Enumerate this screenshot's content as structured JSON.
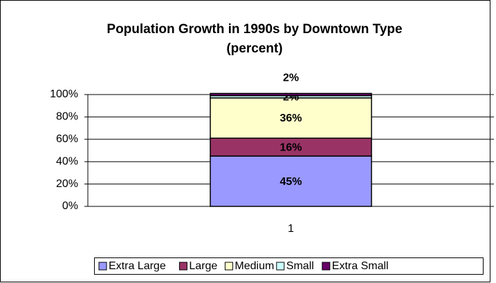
{
  "chart_data": {
    "type": "stacked_bar",
    "title": "Population  Growth in 1990s by Downtown Type",
    "subtitle": "(percent)",
    "categories": [
      "1"
    ],
    "series": [
      {
        "name": "Extra Large",
        "color": "#9999ff",
        "values": [
          45
        ],
        "value_labels": [
          "45%"
        ]
      },
      {
        "name": "Large",
        "color": "#993366",
        "values": [
          16
        ],
        "value_labels": [
          "16%"
        ]
      },
      {
        "name": "Medium",
        "color": "#ffffcc",
        "values": [
          36
        ],
        "value_labels": [
          "36%"
        ]
      },
      {
        "name": "Small",
        "color": "#ccffff",
        "values": [
          2
        ],
        "value_labels": [
          "2%"
        ]
      },
      {
        "name": "Extra Small",
        "color": "#660066",
        "values": [
          2
        ],
        "value_labels": [
          "2%"
        ]
      }
    ],
    "ylim": [
      0,
      100
    ],
    "yticks": [
      {
        "value": 0,
        "label": "0%"
      },
      {
        "value": 20,
        "label": "20%"
      },
      {
        "value": 40,
        "label": "40%"
      },
      {
        "value": 60,
        "label": "60%"
      },
      {
        "value": 80,
        "label": "80%"
      },
      {
        "value": 100,
        "label": "100%"
      }
    ],
    "grid": true,
    "legend": "bottom"
  }
}
